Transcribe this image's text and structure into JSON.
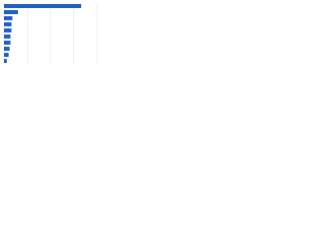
{
  "chart_data": {
    "type": "bar",
    "orientation": "horizontal",
    "categories": [
      null,
      null,
      null,
      null,
      null,
      null,
      null,
      null,
      null,
      null
    ],
    "values": [
      83,
      15,
      9,
      8,
      8,
      7,
      7,
      6,
      5,
      3
    ],
    "color": "#1f5fc8",
    "xlim": [
      0,
      100
    ],
    "xticks": [
      0,
      25,
      50,
      75,
      100
    ],
    "grid": true
  }
}
